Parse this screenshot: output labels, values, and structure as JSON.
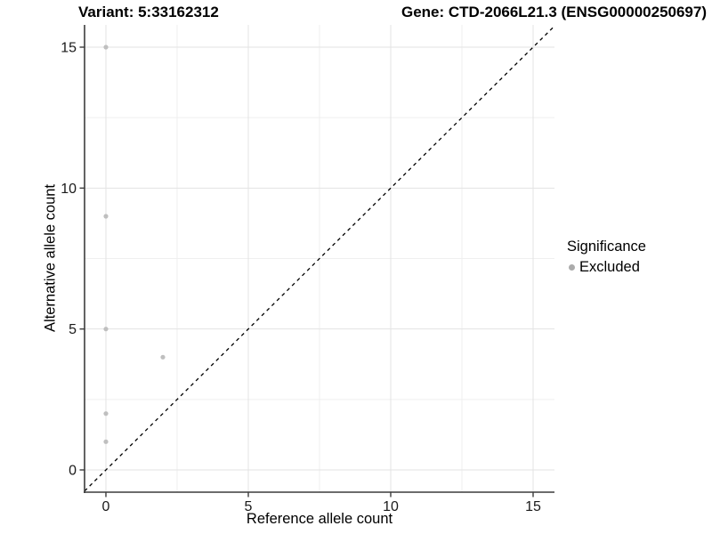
{
  "header": {
    "variant_title": "Variant: 5:33162312",
    "gene_title": "Gene: CTD-2066L21.3 (ENSG00000250697)"
  },
  "chart_data": {
    "type": "scatter",
    "xlabel": "Reference allele count",
    "ylabel": "Alternative allele count",
    "xlim": [
      -0.75,
      15.75
    ],
    "ylim": [
      -0.75,
      15.75
    ],
    "x_ticks": [
      0,
      5,
      10,
      15
    ],
    "y_ticks": [
      0,
      5,
      10,
      15
    ],
    "x_minor_ticks": [
      2.5,
      7.5,
      12.5
    ],
    "y_minor_ticks": [
      2.5,
      7.5,
      12.5
    ],
    "grid": "on",
    "legend_position": "right",
    "series": [
      {
        "name": "Excluded",
        "color": "#bfbfbf",
        "points": [
          {
            "x": 0,
            "y": 15
          },
          {
            "x": 0,
            "y": 9
          },
          {
            "x": 0,
            "y": 5
          },
          {
            "x": 2,
            "y": 4
          },
          {
            "x": 0,
            "y": 2
          },
          {
            "x": 0,
            "y": 1
          }
        ]
      }
    ],
    "identity_line": {
      "from": -0.75,
      "to": 15.75,
      "style": "dashed",
      "color": "#000000"
    }
  },
  "legend": {
    "title": "Significance",
    "items": [
      {
        "label": "Excluded",
        "color": "#ababab"
      }
    ]
  },
  "style": {
    "point_color": "#bfbfbf",
    "major_grid_color": "#e3e3e3",
    "minor_grid_color": "#efefef",
    "axis_line_color": "#3c3c3c",
    "tick_label_color": "#1a1a1a"
  }
}
